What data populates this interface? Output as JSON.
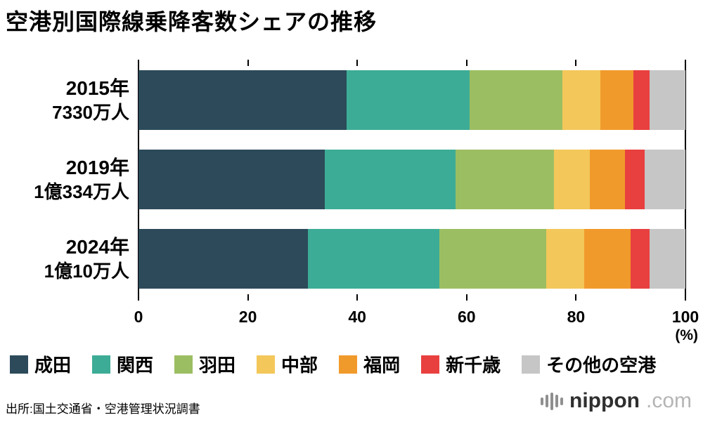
{
  "title": "空港別国際線乗降客数シェアの推移",
  "source": "出所:国土交通省・空港管理状況調書",
  "logo": {
    "name": "nippon",
    "tld": ".com"
  },
  "axis": {
    "unit": "(%)"
  },
  "rows": [
    {
      "year": "2015年",
      "total": "7330万人"
    },
    {
      "year": "2019年",
      "total": "1億334万人"
    },
    {
      "year": "2024年",
      "total": "1億10万人"
    }
  ],
  "chart_data": {
    "type": "bar",
    "orientation": "horizontal",
    "stacked": true,
    "title": "空港別国際線乗降客数シェアの推移",
    "categories": [
      "2015年 7330万人",
      "2019年 1億334万人",
      "2024年 1億10万人"
    ],
    "unit": "%",
    "xlim": [
      0,
      100
    ],
    "x_ticks": [
      0,
      20,
      40,
      60,
      80,
      100
    ],
    "legend_position": "bottom",
    "grid": false,
    "series": [
      {
        "name": "成田",
        "color": "#2c4a5a",
        "values": [
          38,
          34,
          31
        ]
      },
      {
        "name": "関西",
        "color": "#3dac96",
        "values": [
          22.5,
          24,
          24
        ]
      },
      {
        "name": "羽田",
        "color": "#9cbe62",
        "values": [
          17,
          18,
          19.5
        ]
      },
      {
        "name": "中部",
        "color": "#f3c75a",
        "values": [
          7,
          6.5,
          7
        ]
      },
      {
        "name": "福岡",
        "color": "#f19a2c",
        "values": [
          6,
          6.5,
          8.5
        ]
      },
      {
        "name": "新千歳",
        "color": "#e8403f",
        "values": [
          3,
          3.5,
          3.5
        ]
      },
      {
        "name": "その他の空港",
        "color": "#c6c6c6",
        "values": [
          6.5,
          7.5,
          6.5
        ]
      }
    ]
  }
}
